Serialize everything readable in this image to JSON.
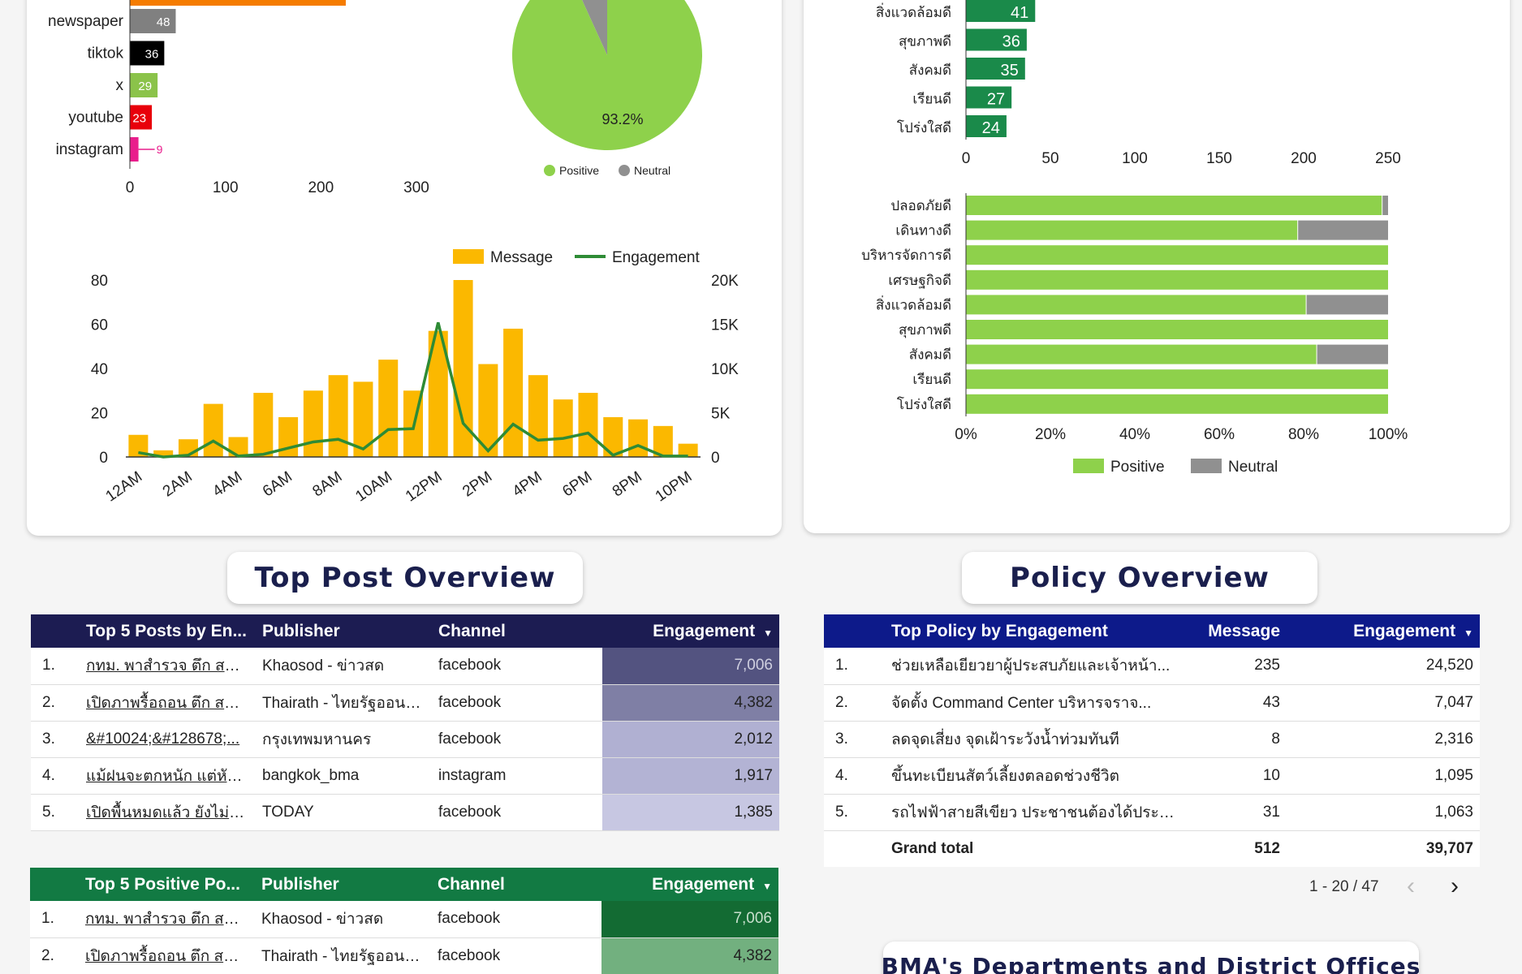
{
  "channel_chart": {
    "type": "bar",
    "categories": [
      "newspaper",
      "tiktok",
      "x",
      "youtube",
      "instagram"
    ],
    "values": [
      48,
      36,
      29,
      23,
      9
    ],
    "colors": [
      "#808080",
      "#000000",
      "#8bc34a",
      "#e8000b",
      "#e91e8c"
    ],
    "xticks": [
      "0",
      "100",
      "200",
      "300"
    ],
    "xlim": [
      0,
      300
    ]
  },
  "sentiment_pie": {
    "type": "pie",
    "slices": [
      {
        "name": "Positive",
        "value": 93.2,
        "color": "#8ed14b"
      },
      {
        "name": "Neutral",
        "value": 6.8,
        "color": "#909090"
      }
    ],
    "positive_label": "93.2%",
    "legend": [
      "Positive",
      "Neutral"
    ]
  },
  "hourly_chart": {
    "type": "bar",
    "legend": [
      "Message",
      "Engagement"
    ],
    "colors": {
      "message": "#fbb800",
      "engagement": "#2e8b35"
    },
    "y_left_ticks": [
      "0",
      "20",
      "40",
      "60",
      "80"
    ],
    "y_right_ticks": [
      "0",
      "5K",
      "10K",
      "15K",
      "20K"
    ],
    "x_tick_labels": [
      "12AM",
      "2AM",
      "4AM",
      "6AM",
      "8AM",
      "10AM",
      "12PM",
      "2PM",
      "4PM",
      "6PM",
      "8PM",
      "10PM"
    ],
    "ylim_left": [
      0,
      80
    ],
    "ylim_right": [
      0,
      20000
    ],
    "messages": [
      10,
      3,
      8,
      24,
      9,
      29,
      18,
      30,
      37,
      34,
      44,
      30,
      57,
      80,
      42,
      58,
      37,
      26,
      29,
      18,
      17,
      14,
      6
    ],
    "engagement": [
      500,
      0,
      200,
      1800,
      100,
      300,
      1000,
      1700,
      2000,
      900,
      3100,
      3200,
      15200,
      3800,
      700,
      3700,
      1900,
      2100,
      2700,
      200,
      1300,
      100,
      100
    ]
  },
  "policy_count_chart": {
    "type": "bar",
    "categories": [
      "สิ่งแวดล้อมดี",
      "สุขภาพดี",
      "สังคมดี",
      "เรียนดี",
      "โปร่งใสดี"
    ],
    "values": [
      41,
      36,
      35,
      27,
      24
    ],
    "color": "#1a8a4a",
    "xticks": [
      "0",
      "50",
      "100",
      "150",
      "200",
      "250"
    ],
    "xlim": [
      0,
      250
    ]
  },
  "policy_sentiment_chart": {
    "type": "bar",
    "categories": [
      "ปลอดภัยดี",
      "เดินทางดี",
      "บริหารจัดการดี",
      "เศรษฐกิจดี",
      "สิ่งแวดล้อมดี",
      "สุขภาพดี",
      "สังคมดี",
      "เรียนดี",
      "โปร่งใสดี"
    ],
    "positive": [
      98.5,
      78.5,
      100,
      100,
      80.5,
      100,
      83,
      100,
      100
    ],
    "neutral": [
      1.5,
      21.5,
      0,
      0,
      19.5,
      0,
      17,
      0,
      0
    ],
    "xticks": [
      "0%",
      "20%",
      "40%",
      "60%",
      "80%",
      "100%"
    ],
    "legend": [
      "Positive",
      "Neutral"
    ],
    "colors": {
      "positive": "#8ed14b",
      "neutral": "#909090"
    }
  },
  "top_post_title": "Top Post Overview",
  "policy_title": "Policy Overview",
  "bma_title": "BMA's Departments and District Offices",
  "top_posts": {
    "headers": [
      "Top 5 Posts by En...",
      "Publisher",
      "Channel",
      "Engagement"
    ],
    "rows": [
      {
        "idx": "1.",
        "post": "กทม. พาสำรวจ ตึก สตง. ı...",
        "publisher": "Khaosod - ข่าวสด",
        "channel": "facebook",
        "engagement": "7,006"
      },
      {
        "idx": "2.",
        "post": "เปิดภาพรื้อถอน ตึก สตง.ถ...",
        "publisher": "Thairath - ไทยรัฐออนไลน์",
        "channel": "facebook",
        "engagement": "4,382"
      },
      {
        "idx": "3.",
        "post": "&#10024;&#128678;...",
        "publisher": "กรุงเทพมหานคร",
        "channel": "facebook",
        "engagement": "2,012"
      },
      {
        "idx": "4.",
        "post": "แม้ฝนจะตกหนัก แต่หัวใจ...",
        "publisher": "bangkok_bma",
        "channel": "instagram",
        "engagement": "1,917"
      },
      {
        "idx": "5.",
        "post": "เปิดพื้นหมดแล้ว ยังไม่พบ...",
        "publisher": "TODAY",
        "channel": "facebook",
        "engagement": "1,385"
      }
    ]
  },
  "top_positive_posts": {
    "headers": [
      "Top 5 Positive Po...",
      "Publisher",
      "Channel",
      "Engagement"
    ],
    "rows": [
      {
        "idx": "1.",
        "post": "กทม. พาสำรวจ ตึก สตง. ı...",
        "publisher": "Khaosod - ข่าวสด",
        "channel": "facebook",
        "engagement": "7,006"
      },
      {
        "idx": "2.",
        "post": "เปิดภาพรื้อถอน ตึก สตง.ถ...",
        "publisher": "Thairath - ไทยรัฐออนไลน์",
        "channel": "facebook",
        "engagement": "4,382"
      }
    ]
  },
  "top_policy": {
    "headers": [
      "Top Policy by Engagement",
      "Message",
      "Engagement"
    ],
    "rows": [
      {
        "idx": "1.",
        "policy": "ช่วยเหลือเยียวยาผู้ประสบภัยและเจ้าหน้า...",
        "message": "235",
        "engagement": "24,520"
      },
      {
        "idx": "2.",
        "policy": "จัดตั้ง Command Center บริหารจราจ...",
        "message": "43",
        "engagement": "7,047"
      },
      {
        "idx": "3.",
        "policy": "ลดจุดเสี่ยง จุดเฝ้าระวังน้ำท่วมทันที",
        "message": "8",
        "engagement": "2,316"
      },
      {
        "idx": "4.",
        "policy": "ขึ้นทะเบียนสัตว์เลี้ยงตลอดช่วงชีวิต",
        "message": "10",
        "engagement": "1,095"
      },
      {
        "idx": "5.",
        "policy": "รถไฟฟ้าสายสีเขียว ประชาชนต้องได้ประโ...",
        "message": "31",
        "engagement": "1,063"
      }
    ],
    "grand_total_label": "Grand total",
    "grand_total_message": "512",
    "grand_total_engagement": "39,707",
    "pagination": "1 - 20 / 47"
  }
}
